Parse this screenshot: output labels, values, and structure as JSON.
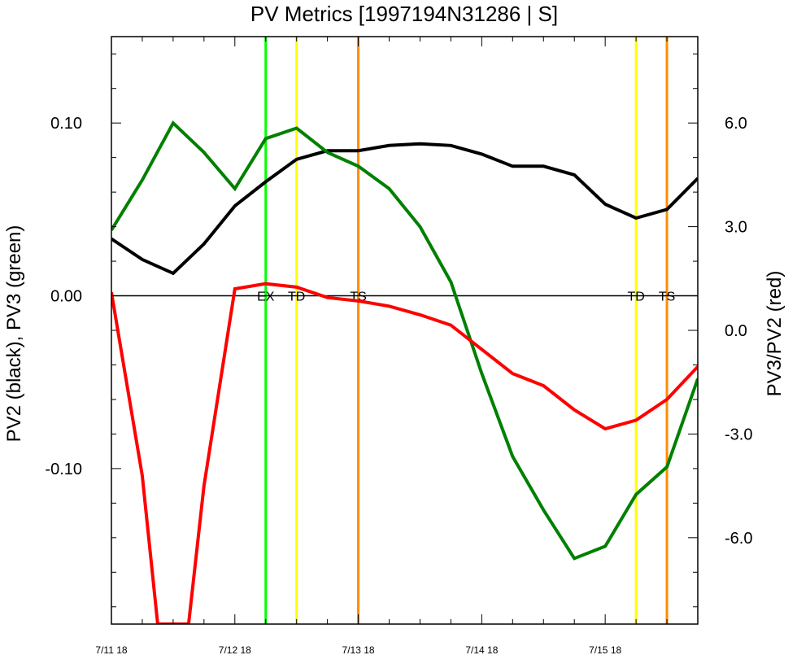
{
  "chart_data": {
    "type": "line",
    "title": "PV Metrics [1997194N31286 | S]",
    "ylabel_left": "PV2 (black), PV3 (green)",
    "ylabel_right": "PV3/PV2 (red)",
    "x_tick_labels": [
      "7/11 18",
      "7/12 18",
      "7/13 18",
      "7/14 18",
      "7/15 18"
    ],
    "x_tick_values": [
      0,
      4,
      8,
      12,
      16
    ],
    "xlim": [
      0,
      19
    ],
    "ylim_left": [
      -0.19,
      0.15
    ],
    "ylim_right": [
      -8.5,
      8.5
    ],
    "y_tick_labels_left": [
      "0.10",
      "0.00",
      "-0.10"
    ],
    "y_tick_values_left": [
      0.1,
      0.0,
      -0.1
    ],
    "y_tick_labels_right": [
      "6.0",
      "3.0",
      "0.0",
      "-3.0",
      "-6.0"
    ],
    "y_tick_values_right": [
      6,
      3,
      0,
      -3,
      -6
    ],
    "zero_line_left": 0,
    "series": [
      {
        "axis": "left",
        "color": "#000000",
        "x": [
          0,
          1,
          2,
          3,
          4,
          5,
          6,
          7,
          8,
          9,
          10,
          11,
          12,
          13,
          14,
          15,
          16,
          17,
          18,
          19
        ],
        "values": [
          0.033,
          0.021,
          0.013,
          0.03,
          0.052,
          0.066,
          0.079,
          0.084,
          0.084,
          0.087,
          0.088,
          0.087,
          0.082,
          0.075,
          0.075,
          0.07,
          0.053,
          0.045,
          0.05,
          0.068
        ]
      },
      {
        "axis": "left",
        "color": "#008000",
        "x": [
          0,
          1,
          2,
          3,
          4,
          5,
          6,
          7,
          8,
          9,
          10,
          11,
          12,
          13,
          14,
          15,
          16,
          17,
          18,
          19
        ],
        "values": [
          0.038,
          0.067,
          0.1,
          0.083,
          0.062,
          0.091,
          0.097,
          0.083,
          0.075,
          0.062,
          0.04,
          0.008,
          -0.045,
          -0.093,
          -0.124,
          -0.152,
          -0.145,
          -0.115,
          -0.099,
          -0.048
        ]
      },
      {
        "axis": "right",
        "color": "#ff0000",
        "x": [
          0,
          1,
          1.5,
          2.5,
          3,
          4,
          5,
          6,
          7,
          8,
          9,
          10,
          11,
          12,
          13,
          14,
          15,
          16,
          17,
          18,
          19
        ],
        "values": [
          1.1,
          -4.2,
          -8.5,
          -8.5,
          -4.5,
          1.2,
          1.35,
          1.25,
          0.95,
          0.85,
          0.7,
          0.45,
          0.15,
          -0.55,
          -1.25,
          -1.6,
          -2.3,
          -2.85,
          -2.6,
          -2.0,
          -1.05
        ]
      }
    ],
    "vertical_markers": [
      {
        "x": 5.0,
        "color": "#00ff00",
        "label": "EX"
      },
      {
        "x": 6.0,
        "color": "#ffff00",
        "label": "TD"
      },
      {
        "x": 8.0,
        "color": "#ff8c00",
        "label": "TS"
      },
      {
        "x": 17.0,
        "color": "#ffff00",
        "label": "TD"
      },
      {
        "x": 18.0,
        "color": "#ff8c00",
        "label": "TS"
      }
    ]
  }
}
